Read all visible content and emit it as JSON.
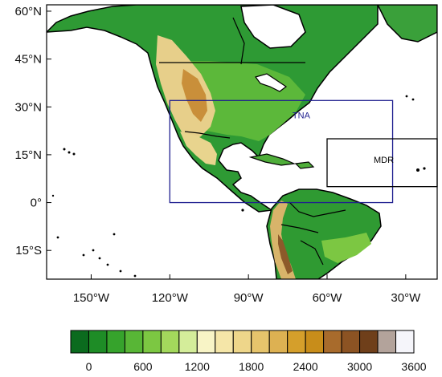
{
  "map": {
    "lat_ticks": [
      "60°N",
      "45°N",
      "30°N",
      "15°N",
      "0°",
      "15°S"
    ],
    "lon_ticks": [
      "150°W",
      "120°W",
      "90°W",
      "60°W",
      "30°W"
    ],
    "extent": {
      "lon_min": -167,
      "lon_max": -18,
      "lat_min": -24,
      "lat_max": 62
    },
    "ocean_color": "#ffffff",
    "coastline_color": "#000000"
  },
  "regions": [
    {
      "id": "tna",
      "label": "TNA",
      "lon": [
        -120,
        -35
      ],
      "lat": [
        0,
        32
      ],
      "color": "#1f1f8f"
    },
    {
      "id": "mdr",
      "label": "MDR",
      "lon": [
        -60,
        -18
      ],
      "lat": [
        5,
        20
      ],
      "color": "#000000"
    }
  ],
  "colorbar": {
    "colors": [
      "#0b6b1e",
      "#1e8c26",
      "#36a32c",
      "#58b636",
      "#7cc742",
      "#a3d85c",
      "#d4ed9a",
      "#f8f4c6",
      "#f5e6a8",
      "#eed68a",
      "#e6c46c",
      "#ddb152",
      "#d59f2b",
      "#c88d1a",
      "#a86b2c",
      "#8c5323",
      "#6f3f1a",
      "#b3a39b",
      "#f5f5fa"
    ],
    "labels": [
      "0",
      "600",
      "1200",
      "1800",
      "2400",
      "3000",
      "3600"
    ]
  }
}
